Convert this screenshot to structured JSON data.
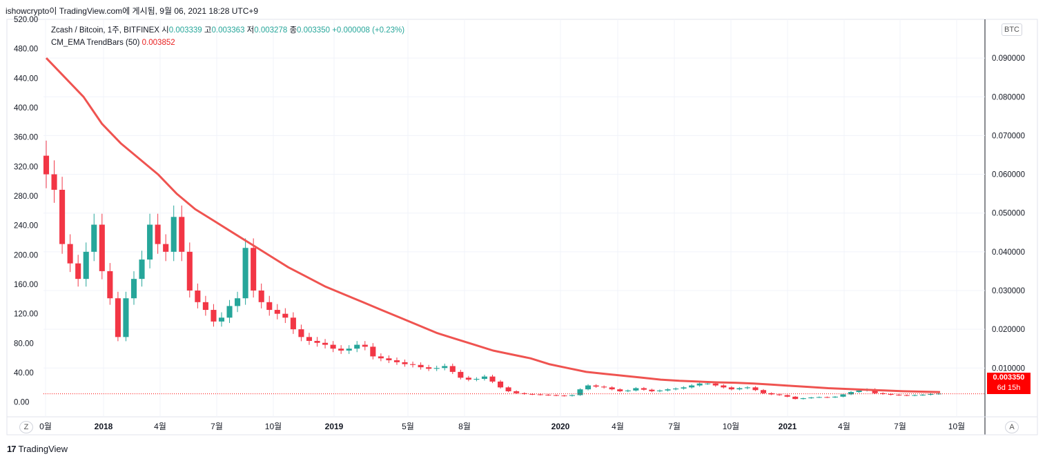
{
  "header": {
    "caption": "ishowcrypto이 TradingView.com에 게시됨, 9월 06, 2021 18:28 UTC+9"
  },
  "legend": {
    "symbol": "Zcash / Bitcoin, 1주, BITFINEX",
    "o_label": "시",
    "o_value": "0.003339",
    "h_label": "고",
    "h_value": "0.003363",
    "l_label": "저",
    "l_value": "0.003278",
    "c_label": "종",
    "c_value": "0.003350",
    "change": "+0.000008 (+0.23%)",
    "indicator_name": "CM_EMA TrendBars (50)",
    "indicator_value": "0.003852"
  },
  "right_axis": {
    "currency": "BTC",
    "last_price": "0.003350",
    "countdown": "6d 15h",
    "ticks": [
      "0.090000",
      "0.080000",
      "0.070000",
      "0.060000",
      "0.050000",
      "0.040000",
      "0.030000",
      "0.020000",
      "0.010000"
    ]
  },
  "left_axis": {
    "ticks": [
      "520.00",
      "480.00",
      "440.00",
      "400.00",
      "360.00",
      "320.00",
      "280.00",
      "240.00",
      "200.00",
      "160.00",
      "120.00",
      "80.00",
      "40.00",
      "0.00"
    ]
  },
  "time_axis": {
    "labels": [
      "0월",
      "2018",
      "4월",
      "7월",
      "10월",
      "2019",
      "5월",
      "8월",
      "2020",
      "4월",
      "7월",
      "10월",
      "2021",
      "4월",
      "7월",
      "10월"
    ],
    "bold": [
      false,
      true,
      false,
      false,
      false,
      true,
      false,
      false,
      true,
      false,
      false,
      false,
      true,
      false,
      false,
      false
    ]
  },
  "buttons": {
    "zoom": "Z",
    "auto": "A"
  },
  "brand": {
    "logo": "17",
    "name": "TradingView"
  },
  "colors": {
    "bear": "#f23645",
    "bull": "#26a69a",
    "bull_trend": "#4caf50",
    "ema": "#ef5350",
    "grid": "#f0f3fa"
  },
  "chart_data": {
    "type": "candlestick",
    "title": "Zcash / Bitcoin, 1주, BITFINEX",
    "xlabel": "",
    "ylabel": "BTC",
    "ylim_btc": [
      -0.0026,
      0.1
    ],
    "ylim_left": [
      -20,
      520
    ],
    "series": [
      {
        "name": "ZEC/BTC close (weekly, sampled)",
        "values": [
          0.06,
          0.056,
          0.042,
          0.037,
          0.033,
          0.04,
          0.047,
          0.035,
          0.028,
          0.018,
          0.028,
          0.033,
          0.038,
          0.047,
          0.042,
          0.04,
          0.049,
          0.04,
          0.03,
          0.027,
          0.025,
          0.022,
          0.023,
          0.026,
          0.028,
          0.041,
          0.03,
          0.027,
          0.025,
          0.024,
          0.023,
          0.02,
          0.018,
          0.017,
          0.0165,
          0.016,
          0.015,
          0.0145,
          0.015,
          0.016,
          0.0155,
          0.013,
          0.0125,
          0.012,
          0.0115,
          0.011,
          0.0108,
          0.0102,
          0.0098,
          0.01,
          0.0105,
          0.009,
          0.0075,
          0.007,
          0.0072,
          0.0078,
          0.0065,
          0.005,
          0.004,
          0.0035,
          0.0033,
          0.0032,
          0.0031,
          0.003,
          0.0029,
          0.0028,
          0.003,
          0.0045,
          0.0055,
          0.0052,
          0.005,
          0.0045,
          0.004,
          0.0042,
          0.0048,
          0.0044,
          0.004,
          0.0042,
          0.0045,
          0.0047,
          0.005,
          0.0055,
          0.006,
          0.006,
          0.0055,
          0.005,
          0.0045,
          0.0048,
          0.005,
          0.0043,
          0.0035,
          0.0032,
          0.003,
          0.0026,
          0.002,
          0.0022,
          0.0024,
          0.0025,
          0.0024,
          0.0026,
          0.0032,
          0.0038,
          0.0042,
          0.0045,
          0.0035,
          0.0033,
          0.0031,
          0.003,
          0.0029,
          0.003,
          0.0031,
          0.0033,
          0.0034
        ]
      },
      {
        "name": "CM_EMA TrendBars (50)",
        "values": [
          0.09,
          0.085,
          0.08,
          0.073,
          0.068,
          0.064,
          0.06,
          0.055,
          0.051,
          0.048,
          0.045,
          0.042,
          0.039,
          0.036,
          0.0335,
          0.031,
          0.029,
          0.027,
          0.025,
          0.023,
          0.021,
          0.019,
          0.0175,
          0.016,
          0.0145,
          0.0135,
          0.0125,
          0.011,
          0.01,
          0.009,
          0.0085,
          0.008,
          0.0075,
          0.007,
          0.0067,
          0.0065,
          0.0063,
          0.0062,
          0.006,
          0.0057,
          0.0054,
          0.0051,
          0.0048,
          0.0046,
          0.0044,
          0.0042,
          0.004,
          0.0039,
          0.0038
        ]
      }
    ],
    "last_close": 0.00335,
    "ema_last": 0.003852
  }
}
